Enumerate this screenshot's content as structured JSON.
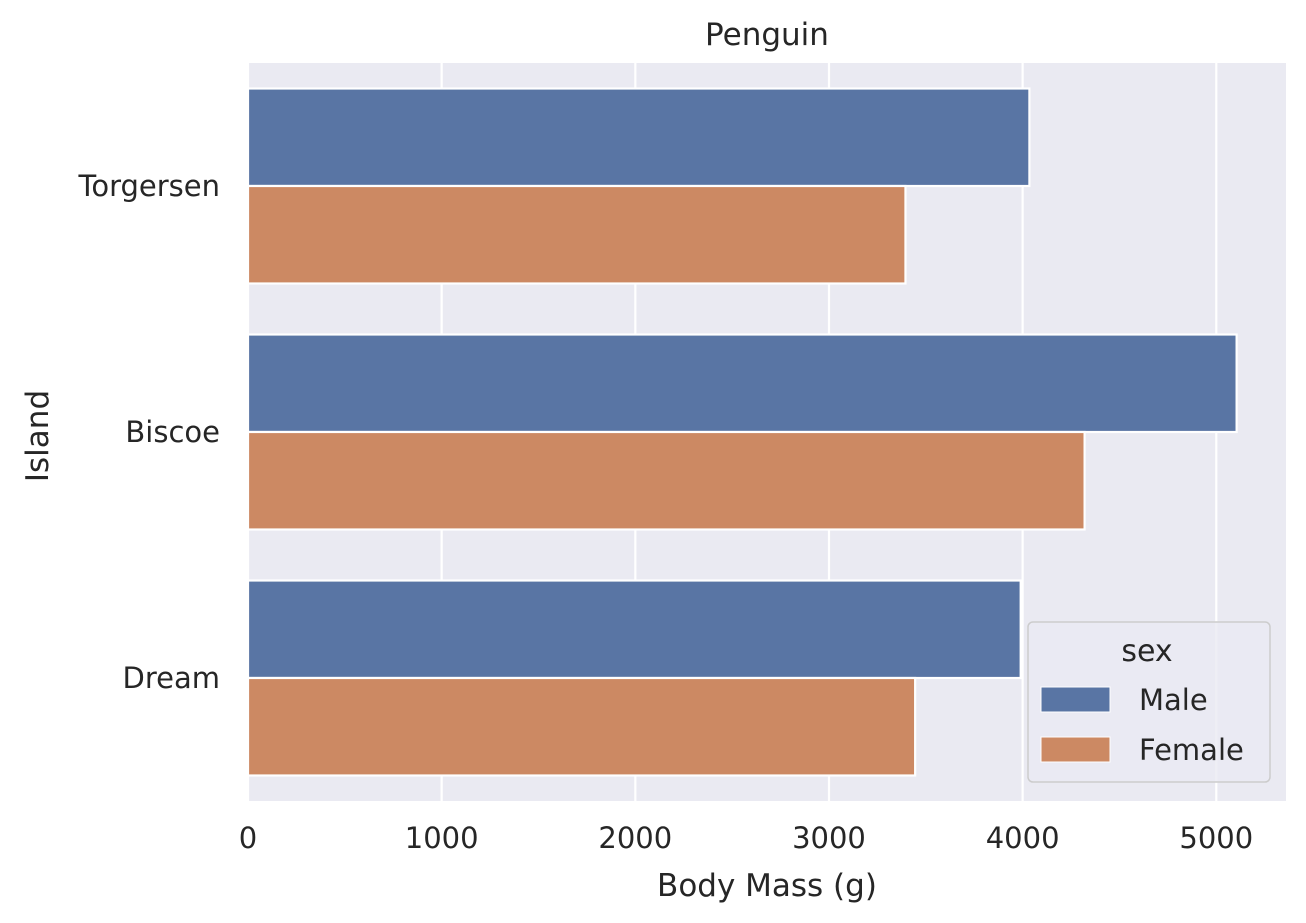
{
  "chart_data": {
    "type": "bar",
    "orientation": "horizontal",
    "title": "Penguin",
    "xlabel": "Body Mass (g)",
    "ylabel": "Island",
    "categories": [
      "Torgersen",
      "Biscoe",
      "Dream"
    ],
    "series": [
      {
        "name": "Male",
        "color": "#5975a4",
        "values": [
          4035,
          5105,
          3990
        ]
      },
      {
        "name": "Female",
        "color": "#cc8963",
        "values": [
          3395,
          4320,
          3445
        ]
      }
    ],
    "xlim": [
      0,
      5360
    ],
    "xticks": [
      0,
      1000,
      2000,
      3000,
      4000,
      5000
    ],
    "grid": true,
    "legend": {
      "title": "sex",
      "placement": "lower-right"
    },
    "colors": {
      "background": "#eaeaf2",
      "grid": "#ffffff",
      "text": "#262626"
    }
  }
}
